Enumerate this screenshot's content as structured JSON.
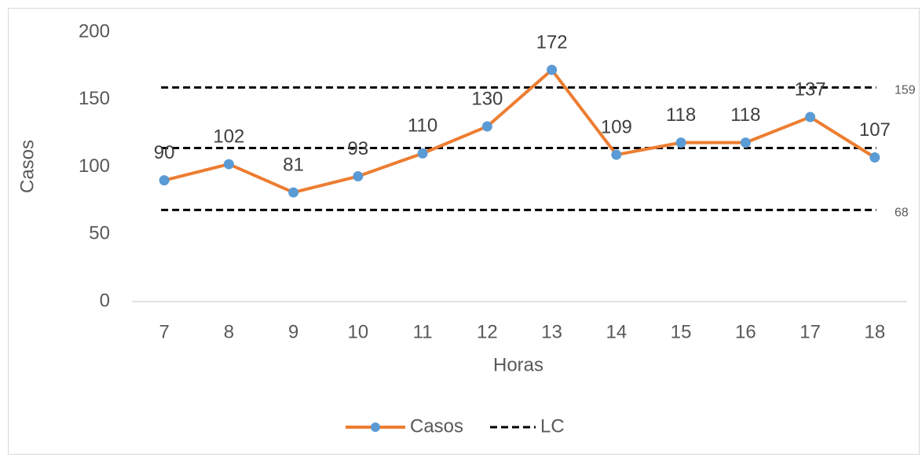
{
  "chart_data": {
    "type": "line",
    "x_label": "Horas",
    "y_label": "Casos",
    "categories": [
      "7",
      "8",
      "9",
      "10",
      "11",
      "12",
      "13",
      "14",
      "15",
      "16",
      "17",
      "18"
    ],
    "series": [
      {
        "name": "Casos",
        "color": "#ED7D31",
        "marker_color": "#5B9BD5",
        "values": [
          90,
          102,
          81,
          93,
          110,
          130,
          172,
          109,
          118,
          118,
          137,
          107
        ]
      }
    ],
    "control_lines": {
      "name": "LC",
      "color": "#000000",
      "values": [
        159,
        114,
        68
      ],
      "value_labels": [
        "159",
        null,
        "68"
      ]
    },
    "ylim": [
      0,
      200
    ],
    "yticks": [
      0,
      50,
      100,
      150,
      200
    ],
    "grid": false,
    "legend": "bottom"
  }
}
